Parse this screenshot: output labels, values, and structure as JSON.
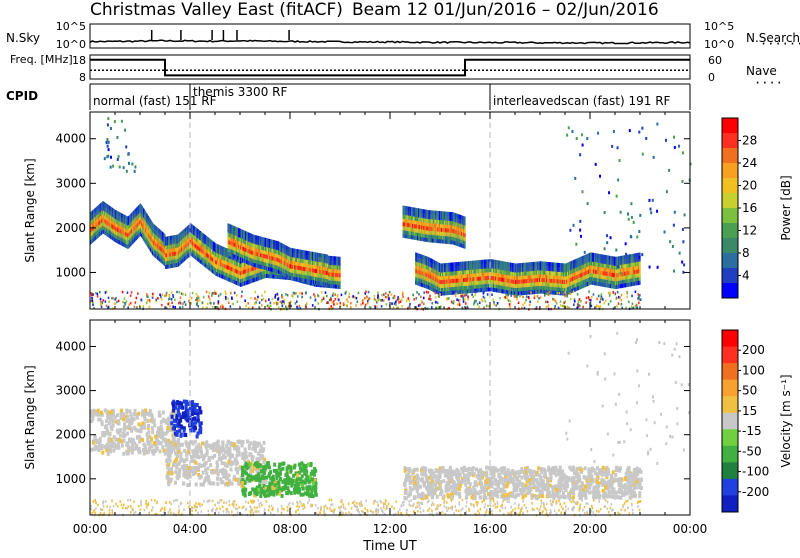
{
  "header": {
    "title": "Christmas Valley East (fitACF)",
    "subtitle": "Beam 12  01/Jun/2016 – 02/Jun/2016"
  },
  "chart_data": [
    {
      "type": "line",
      "panel": "noise",
      "left_label": "N.Sky",
      "right_label": "N.Search",
      "left_ticks": [
        "10^5",
        "10^0"
      ],
      "right_ticks": [
        "10^5",
        "10^0"
      ],
      "series": [
        {
          "name": "N.Sky",
          "x": [
            0,
            1,
            2,
            3,
            4,
            5,
            6,
            7,
            8,
            9,
            10,
            11,
            12,
            13,
            14,
            15,
            16,
            17,
            18,
            19,
            20,
            21,
            22,
            23,
            24
          ],
          "y": [
            1.1,
            1.15,
            1.2,
            1.3,
            1.25,
            1.2,
            1.3,
            1.2,
            1.15,
            1.1,
            1.05,
            1.0,
            1.0,
            0.95,
            0.9,
            0.9,
            0.85,
            0.85,
            0.8,
            0.8,
            0.75,
            0.75,
            0.8,
            0.85,
            0.9
          ]
        }
      ]
    },
    {
      "type": "line",
      "panel": "frequency",
      "left_label": "Freq. [MHz]",
      "right_label": "Nave",
      "left_ticks": [
        "18",
        "8"
      ],
      "right_ticks": [
        "60",
        "0"
      ],
      "series": [
        {
          "name": "Freq",
          "x": [
            0,
            3,
            3,
            15,
            15,
            24
          ],
          "y": [
            16,
            16,
            9.5,
            9.5,
            16,
            16
          ]
        },
        {
          "name": "Nave",
          "x": [
            0,
            24
          ],
          "y": [
            22,
            22
          ]
        }
      ]
    },
    {
      "type": "table",
      "panel": "cpid",
      "label": "CPID",
      "segments": [
        {
          "start": 0,
          "end": 4,
          "text": "normal (fast) 151 RF"
        },
        {
          "start": 4,
          "end": 16,
          "text": "themis 3300 RF"
        },
        {
          "start": 16,
          "end": 24,
          "text": "interleavedscan (fast) 191 RF"
        }
      ]
    },
    {
      "type": "heatmap",
      "panel": "power",
      "ylabel": "Slant Range [km]",
      "ylim": [
        180,
        4600
      ],
      "yticks": [
        1000,
        2000,
        3000,
        4000
      ],
      "xlim": [
        0,
        24
      ],
      "colorbar": {
        "label": "Power [dB]",
        "ticks": [
          4,
          8,
          12,
          16,
          20,
          24,
          28
        ],
        "colors": [
          "#0000ff",
          "#1f3fc0",
          "#2a6fa0",
          "#3a8a6a",
          "#4aa050",
          "#7cc040",
          "#c8d030",
          "#f0c020",
          "#f8a020",
          "#f07020",
          "#ff3020",
          "#ff0000"
        ]
      },
      "bands": [
        {
          "x": [
            0.0,
            0.5,
            1.0,
            1.5,
            2.0,
            2.5,
            3.0
          ],
          "y": [
            2000,
            2250,
            2050,
            1900,
            2200,
            1750,
            1500
          ]
        },
        {
          "x": [
            3.0,
            3.5,
            4.0,
            5.0,
            6.0,
            7.0,
            8.0,
            9.0,
            10.0
          ],
          "y": [
            1450,
            1500,
            1750,
            1300,
            1050,
            1250,
            1200,
            1050,
            1000
          ]
        },
        {
          "x": [
            5.5,
            6.5,
            7.5,
            8.0,
            9.0,
            9.5
          ],
          "y": [
            1750,
            1500,
            1350,
            1200,
            1100,
            1050
          ]
        },
        {
          "x": [
            13.0,
            13.5,
            14.0,
            15.0,
            16.0,
            17.0,
            18.0,
            19.0,
            20.0,
            21.0,
            22.0
          ],
          "y": [
            1100,
            1000,
            850,
            900,
            950,
            850,
            900,
            850,
            1100,
            1000,
            1100
          ]
        },
        {
          "x": [
            12.5,
            13.5,
            14.5,
            15.0
          ],
          "y": [
            2150,
            2050,
            2000,
            1900
          ]
        }
      ]
    },
    {
      "type": "heatmap",
      "panel": "velocity",
      "ylabel": "Slant Range [km]",
      "xlabel": "Time UT",
      "ylim": [
        180,
        4600
      ],
      "yticks": [
        1000,
        2000,
        3000,
        4000
      ],
      "xlim": [
        0,
        24
      ],
      "xticks": [
        "00:00",
        "04:00",
        "08:00",
        "12:00",
        "16:00",
        "20:00",
        "00:00"
      ],
      "colorbar": {
        "label": "Velocity [m s⁻¹]",
        "ticks": [
          200,
          100,
          50,
          15,
          -15,
          -50,
          -100,
          -200
        ],
        "colors": [
          "#1020c0",
          "#2040e0",
          "#208040",
          "#40b040",
          "#70d040",
          "#c8c8c8",
          "#f0c040",
          "#f8a030",
          "#f07020",
          "#ff3020",
          "#ff0000"
        ]
      },
      "regions": [
        {
          "kind": "gray",
          "x": [
            0.0,
            3.5
          ],
          "y": [
            1600,
            2600
          ]
        },
        {
          "kind": "gray",
          "x": [
            3.0,
            7.0
          ],
          "y": [
            900,
            1900
          ]
        },
        {
          "kind": "green",
          "x": [
            6.0,
            9.0
          ],
          "y": [
            650,
            1400
          ]
        },
        {
          "kind": "blue",
          "x": [
            3.2,
            4.4
          ],
          "y": [
            2000,
            2800
          ]
        },
        {
          "kind": "gray",
          "x": [
            12.5,
            22.0
          ],
          "y": [
            600,
            1300
          ]
        }
      ]
    }
  ]
}
